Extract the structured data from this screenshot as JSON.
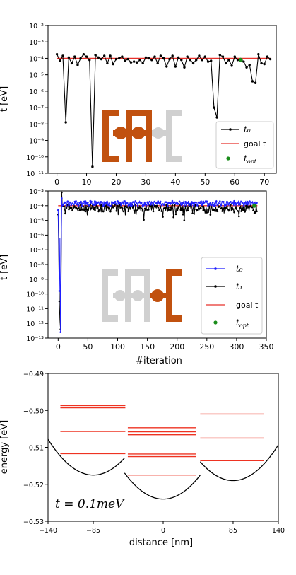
{
  "colors": {
    "accent": "#c1510f",
    "inactive": "#d0d0d0",
    "goal": "#e8302a",
    "t0_top": "#000000",
    "t0_mid": "#1f1fff",
    "t1_mid": "#000000",
    "opt": "#1a8c1a",
    "energy": "#ee3322"
  },
  "chart_data": [
    {
      "type": "line",
      "scale": "log",
      "ylabel": "t [eV]",
      "xlim": [
        -3,
        74
      ],
      "ylim_exp": [
        -11,
        -2
      ],
      "xticks": [
        "0",
        "10",
        "20",
        "30",
        "40",
        "50",
        "60",
        "70"
      ],
      "yticks": [
        "10⁻²",
        "10⁻³",
        "10⁻⁴",
        "10⁻⁵",
        "10⁻⁶",
        "10⁻⁷",
        "10⁻⁸",
        "10⁻⁹",
        "10⁻¹⁰",
        "10⁻¹¹"
      ],
      "goal_exp": -4,
      "series": [
        {
          "name": "t₀",
          "log10_values": [
            -3.75,
            -4.15,
            -3.85,
            -7.9,
            -3.95,
            -4.3,
            -3.9,
            -4.4,
            -4.0,
            -3.75,
            -3.9,
            -4.1,
            -10.6,
            -3.8,
            -3.95,
            -4.05,
            -3.85,
            -4.3,
            -3.85,
            -4.35,
            -4.05,
            -4.0,
            -3.9,
            -4.15,
            -4.05,
            -4.25,
            -4.2,
            -4.25,
            -4.1,
            -4.3,
            -3.95,
            -4.0,
            -4.1,
            -3.9,
            -4.3,
            -3.85,
            -4.0,
            -4.5,
            -4.05,
            -3.85,
            -4.5,
            -3.95,
            -4.1,
            -4.55,
            -3.9,
            -4.1,
            -4.3,
            -4.1,
            -3.85,
            -4.1,
            -3.9,
            -4.2,
            -4.15,
            -7.0,
            -7.6,
            -3.8,
            -3.9,
            -4.3,
            -4.1,
            -4.45,
            -3.9,
            -4.1,
            -4.05,
            -4.2,
            -4.55,
            -4.4,
            -5.4,
            -5.5,
            -3.75,
            -4.3,
            -4.35,
            -3.9,
            -4.05
          ]
        },
        {
          "name": "goal t",
          "value": "1e-4"
        },
        {
          "name": "t_opt",
          "x": 62,
          "log10_value": -4.1
        }
      ],
      "legend": [
        "t₀",
        "goal t",
        "t"
      ],
      "legend_sub": "opt"
    },
    {
      "type": "line",
      "scale": "log",
      "xlabel": "#iteration",
      "ylabel": "t [eV]",
      "xlim": [
        -17,
        350
      ],
      "ylim_exp": [
        -13,
        -3
      ],
      "xticks": [
        "0",
        "50",
        "100",
        "150",
        "200",
        "250",
        "300",
        "350"
      ],
      "yticks": [
        "10⁻³",
        "10⁻⁴",
        "10⁻⁵",
        "10⁻⁶",
        "10⁻⁷",
        "10⁻⁸",
        "10⁻⁹",
        "10⁻¹⁰",
        "10⁻¹¹",
        "10⁻¹²",
        "10⁻¹³"
      ],
      "goal_exp": -4,
      "series": [
        {
          "name": "t₀",
          "n_points": 335,
          "typical_log10": -3.85
        },
        {
          "name": "t₁",
          "n_points": 335,
          "typical_log10": -4.15
        },
        {
          "name": "goal t",
          "value": "1e-4"
        },
        {
          "name": "t_opt",
          "x": 330,
          "log10_value": -4.0
        }
      ],
      "legend": [
        "t₀",
        "t₁",
        "goal t",
        "t"
      ],
      "legend_sub": "opt"
    },
    {
      "type": "line",
      "xlabel": "distance [nm]",
      "ylabel": "energy [eV]",
      "xlim": [
        -140,
        140
      ],
      "ylim": [
        -0.53,
        -0.49
      ],
      "xticks": [
        "−140",
        "−85",
        "0",
        "85",
        "140"
      ],
      "yticks": [
        "−0.49",
        "−0.50",
        "−0.51",
        "−0.52",
        "−0.53"
      ],
      "annotation": "t = 0.1meV",
      "potential": [
        {
          "x_from": -160,
          "x_to": -47,
          "center": -85,
          "min": -0.5175
        },
        {
          "x_from": -47,
          "x_to": 45,
          "center": 0,
          "min": -0.524
        },
        {
          "x_from": 45,
          "x_to": 160,
          "center": 85,
          "min": -0.519
        }
      ],
      "level_groups": [
        {
          "x_from": -125,
          "x_to": -46,
          "energies": [
            -0.4987,
            -0.4993,
            -0.5057,
            -0.5117
          ]
        },
        {
          "x_from": -43,
          "x_to": 40,
          "energies": [
            -0.5047,
            -0.5058,
            -0.5066,
            -0.5118,
            -0.5125,
            -0.5175
          ]
        },
        {
          "x_from": 45,
          "x_to": 122,
          "energies": [
            -0.501,
            -0.5075,
            -0.5136
          ]
        }
      ]
    }
  ]
}
